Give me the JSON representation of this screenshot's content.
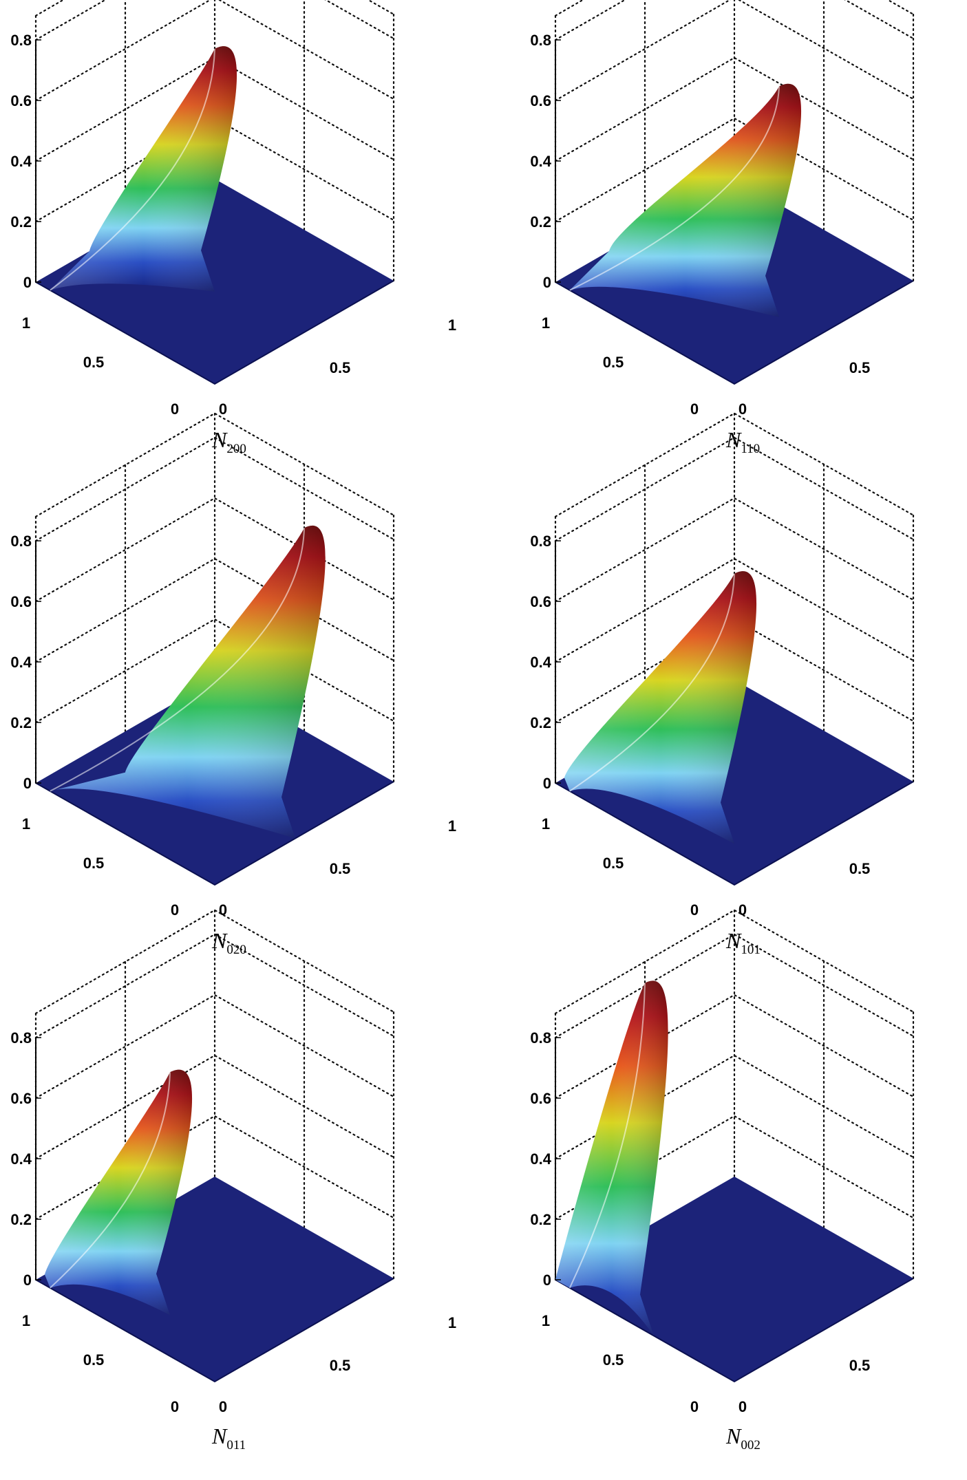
{
  "chart_data": [
    {
      "type": "surface",
      "caption": {
        "main": "N",
        "sub": "200"
      },
      "peak": {
        "x": 0.0,
        "y": 0.0,
        "z": 0.43
      },
      "zticks": [
        "0",
        "0.2",
        "0.4",
        "0.6",
        "0.8"
      ],
      "xticks": [
        "0",
        "0.5",
        "1"
      ],
      "yticks": [
        "0",
        "0.5",
        "1"
      ],
      "zlim": [
        0,
        0.8
      ],
      "xlim": [
        0,
        1
      ],
      "ylim": [
        0,
        1
      ],
      "grid": true
    },
    {
      "type": "surface",
      "caption": {
        "main": "N",
        "sub": "110"
      },
      "peak": {
        "x": 0.25,
        "y": 0.0,
        "z": 0.39
      },
      "zticks": [
        "0",
        "0.2",
        "0.4",
        "0.6",
        "0.8"
      ],
      "xticks": [
        "0",
        "0.5",
        "1"
      ],
      "yticks": [
        "0",
        "0.5",
        "1"
      ],
      "zlim": [
        0,
        0.8
      ],
      "xlim": [
        0,
        1
      ],
      "ylim": [
        0,
        1
      ],
      "grid": true
    },
    {
      "type": "surface",
      "caption": {
        "main": "N",
        "sub": "020"
      },
      "peak": {
        "x": 0.5,
        "y": 0.0,
        "z": 0.67
      },
      "zticks": [
        "0",
        "0.2",
        "0.4",
        "0.6",
        "0.8"
      ],
      "xticks": [
        "0",
        "0.5",
        "1"
      ],
      "yticks": [
        "0",
        "0.5",
        "1"
      ],
      "zlim": [
        0,
        0.8
      ],
      "xlim": [
        0,
        1
      ],
      "ylim": [
        0,
        1
      ],
      "grid": true
    },
    {
      "type": "surface",
      "caption": {
        "main": "N",
        "sub": "101"
      },
      "peak": {
        "x": 0.25,
        "y": 0.25,
        "z": 0.52
      },
      "zticks": [
        "0",
        "0.2",
        "0.4",
        "0.6",
        "0.8"
      ],
      "xticks": [
        "0",
        "0.5",
        "1"
      ],
      "yticks": [
        "0",
        "0.5",
        "1"
      ],
      "zlim": [
        0,
        0.8
      ],
      "xlim": [
        0,
        1
      ],
      "ylim": [
        0,
        1
      ],
      "grid": true
    },
    {
      "type": "surface",
      "caption": {
        "main": "N",
        "sub": "011"
      },
      "peak": {
        "x": 0.0,
        "y": 0.25,
        "z": 0.43
      },
      "zticks": [
        "0",
        "0.2",
        "0.4",
        "0.6",
        "0.8"
      ],
      "xticks": [
        "0",
        "0.5",
        "1"
      ],
      "yticks": [
        "0",
        "0.5",
        "1"
      ],
      "zlim": [
        0,
        0.8
      ],
      "xlim": [
        0,
        1
      ],
      "ylim": [
        0,
        1
      ],
      "grid": true
    },
    {
      "type": "surface",
      "caption": {
        "main": "N",
        "sub": "002"
      },
      "peak": {
        "x": 0.0,
        "y": 0.5,
        "z": 0.81
      },
      "zticks": [
        "0",
        "0.2",
        "0.4",
        "0.6",
        "0.8"
      ],
      "xticks": [
        "0",
        "0.5",
        "1"
      ],
      "yticks": [
        "0",
        "0.5",
        "1"
      ],
      "zlim": [
        0,
        0.8
      ],
      "xlim": [
        0,
        1
      ],
      "ylim": [
        0,
        1
      ],
      "grid": true
    }
  ],
  "colors": {
    "floor": "#1c2379",
    "colormap": [
      "#16207a",
      "#2a4fc4",
      "#7fd3f2",
      "#2fbf5a",
      "#d8d521",
      "#e8581c",
      "#b8141b",
      "#7a0f10"
    ]
  }
}
